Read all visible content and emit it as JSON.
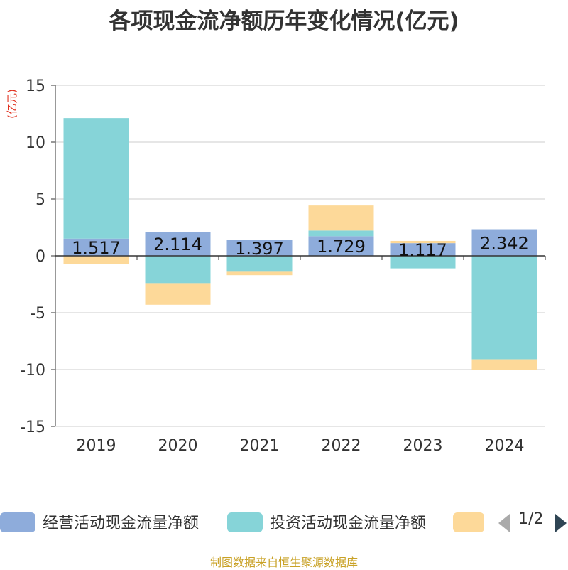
{
  "chart_data": {
    "type": "bar",
    "stacked": true,
    "title": "各项现金流净额历年变化情况(亿元)",
    "ylabel": "(亿元)",
    "categories": [
      "2019",
      "2020",
      "2021",
      "2022",
      "2023",
      "2024"
    ],
    "ylim": [
      -15,
      15
    ],
    "yticks": [
      15,
      10,
      5,
      0,
      -5,
      -10,
      -15
    ],
    "grid": true,
    "legend_position": "bottom",
    "series": [
      {
        "name": "经营活动现金流量净额",
        "color": "#8eacdb",
        "values": [
          1.517,
          2.114,
          1.397,
          1.729,
          1.117,
          2.342
        ],
        "labels": [
          "1.517",
          "2.114",
          "1.397",
          "1.729",
          "1.117",
          "2.342"
        ]
      },
      {
        "name": "投资活动现金流量净额",
        "color": "#86d4d8",
        "values": [
          10.6,
          -2.4,
          -1.4,
          0.5,
          -1.1,
          -9.1
        ]
      },
      {
        "name": "",
        "color": "#fdd999",
        "values": [
          -0.7,
          -1.9,
          -0.3,
          2.2,
          0.2,
          -0.9
        ]
      }
    ]
  },
  "legend": {
    "page": "1/2",
    "prev_icon": "triangle-left-icon",
    "next_icon": "triangle-right-icon"
  },
  "source": "制图数据来自恒生聚源数据库"
}
